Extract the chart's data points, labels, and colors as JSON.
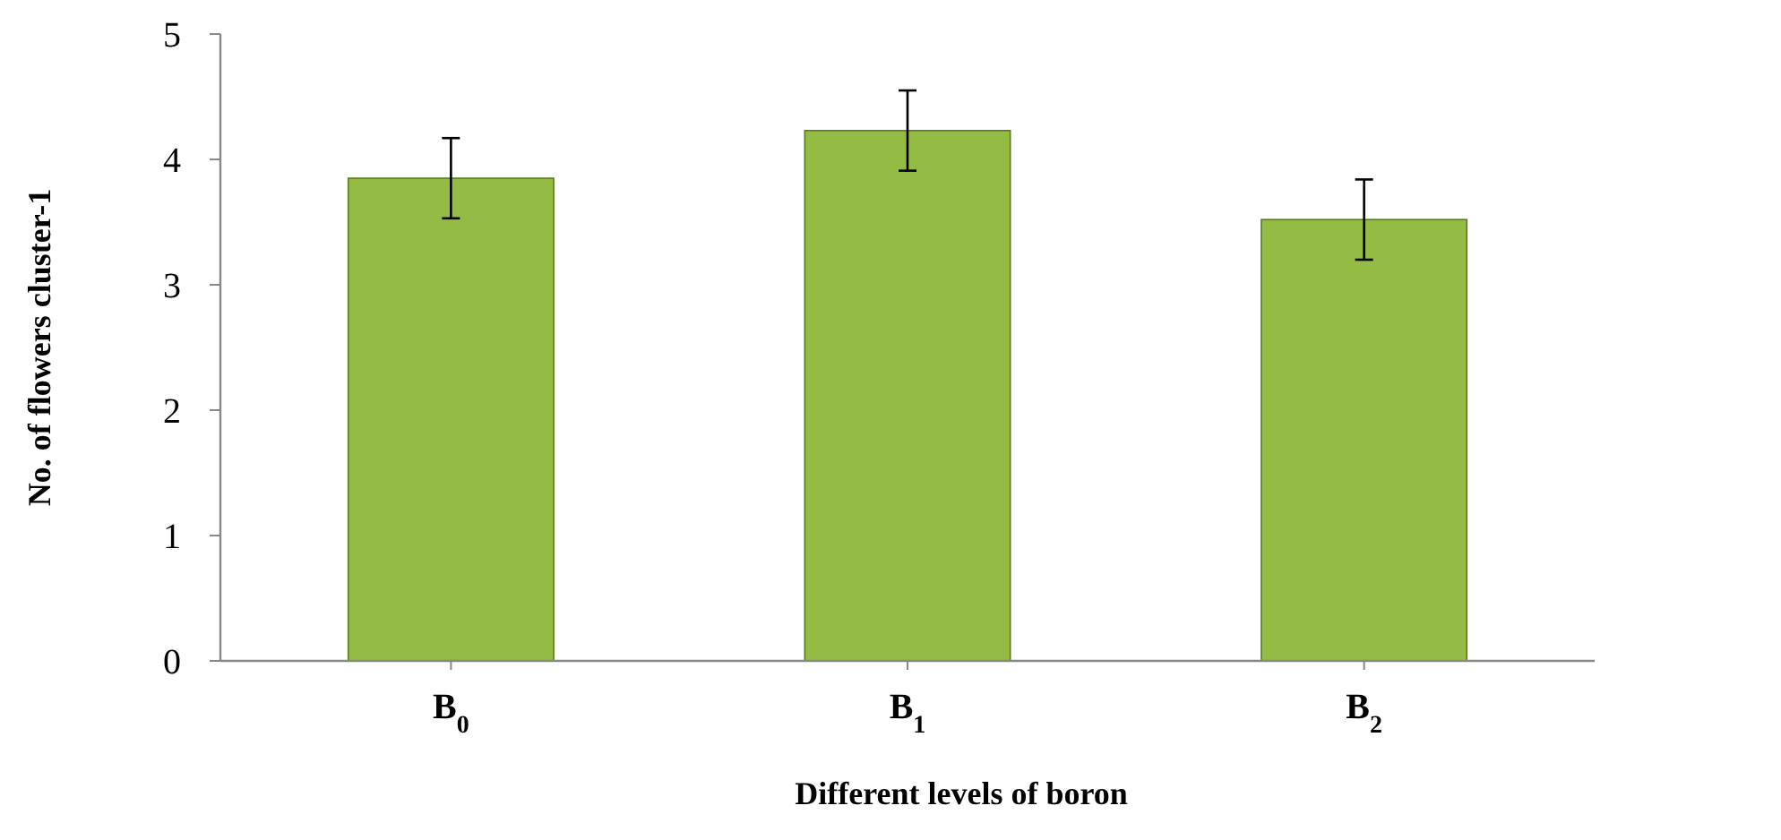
{
  "chart_data": {
    "type": "bar",
    "xlabel": "Different levels of boron",
    "ylabel": "No. of flowers cluster-1",
    "categories": [
      "B$_{0}$",
      "B$_{1}$",
      "B$_{2}$"
    ],
    "values": [
      3.85,
      4.23,
      3.52
    ],
    "errors": [
      0.32,
      0.32,
      0.32
    ],
    "color": "#94bb44",
    "ylim": [
      0,
      5
    ],
    "yticks": [
      0,
      1,
      2,
      3,
      4,
      5
    ],
    "grid": false
  }
}
